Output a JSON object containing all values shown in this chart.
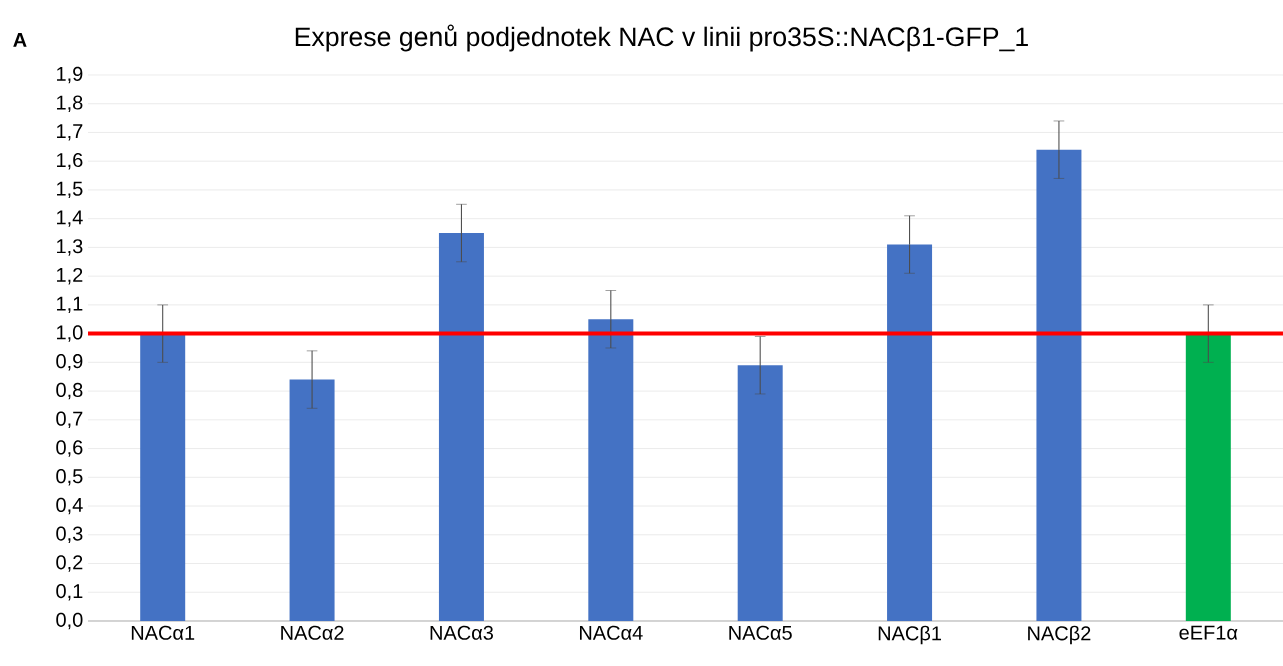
{
  "chart_data": {
    "type": "bar",
    "title": "Exprese genů podjednotek NAC v linii pro35S::NACβ1-GFP_1",
    "annotations": [
      "A"
    ],
    "categories": [
      "NACα1",
      "NACα2",
      "NACα3",
      "NACα4",
      "NACα5",
      "NACβ1",
      "NACβ2",
      "eEF1α"
    ],
    "values": [
      1.0,
      0.84,
      1.35,
      1.05,
      0.89,
      1.31,
      1.64,
      1.0
    ],
    "errors": [
      0.1,
      0.1,
      0.1,
      0.1,
      0.1,
      0.1,
      0.1,
      0.1
    ],
    "colors": [
      "#4472c4",
      "#4472c4",
      "#4472c4",
      "#4472c4",
      "#4472c4",
      "#4472c4",
      "#4472c4",
      "#00b050"
    ],
    "ylim": [
      0,
      1.9
    ],
    "yticks": [
      {
        "value": 0,
        "label": "0,0"
      },
      {
        "value": 0.1,
        "label": "0,1"
      },
      {
        "value": 0.2,
        "label": "0,2"
      },
      {
        "value": 0.3,
        "label": "0,3"
      },
      {
        "value": 0.4,
        "label": "0,4"
      },
      {
        "value": 0.5,
        "label": "0,5"
      },
      {
        "value": 0.6,
        "label": "0,6"
      },
      {
        "value": 0.7,
        "label": "0,7"
      },
      {
        "value": 0.8,
        "label": "0,8"
      },
      {
        "value": 0.9,
        "label": "0,9"
      },
      {
        "value": 1.0,
        "label": "1,0"
      },
      {
        "value": 1.1,
        "label": "1,1"
      },
      {
        "value": 1.2,
        "label": "1,2"
      },
      {
        "value": 1.3,
        "label": "1,3"
      },
      {
        "value": 1.4,
        "label": "1,4"
      },
      {
        "value": 1.5,
        "label": "1,5"
      },
      {
        "value": 1.6,
        "label": "1,6"
      },
      {
        "value": 1.7,
        "label": "1,7"
      },
      {
        "value": 1.8,
        "label": "1,8"
      },
      {
        "value": 1.9,
        "label": "1,9"
      }
    ],
    "grid": "y",
    "ref_lines": [
      {
        "axis": "y",
        "value": 1.0,
        "color": "#ff0000"
      }
    ]
  }
}
